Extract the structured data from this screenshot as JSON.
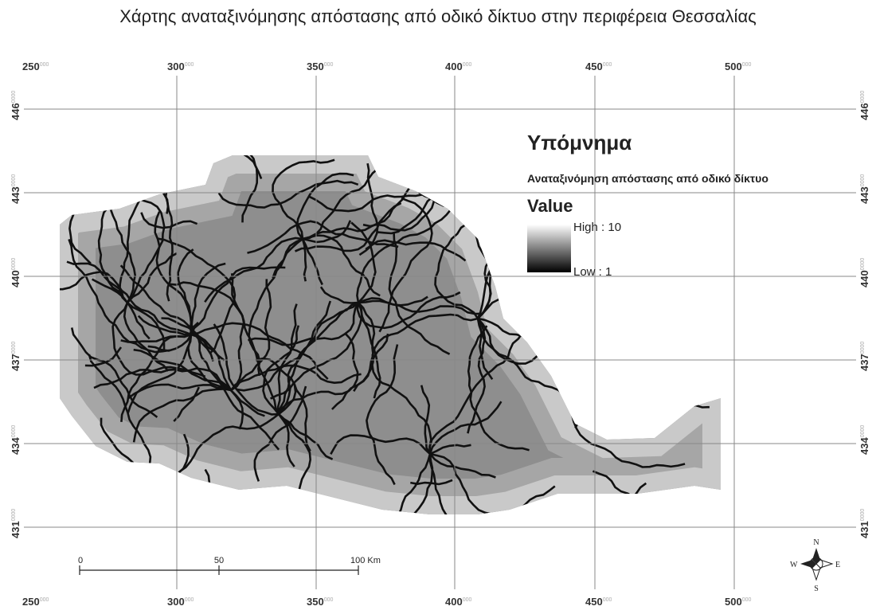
{
  "title": "Χάρτης αναταξινόμησης απόστασης από οδικό δίκτυο στην περιφέρεια Θεσσαλίας",
  "legend": {
    "title": "Υπόμνημα",
    "layer": "Αναταξινόμηση απόστασης από οδικό δίκτυο",
    "field": "Value",
    "high": "High : 10",
    "low": "Low : 1"
  },
  "grid": {
    "x_labels": [
      {
        "main": "250",
        "sup": "000"
      },
      {
        "main": "300",
        "sup": "000"
      },
      {
        "main": "350",
        "sup": "000"
      },
      {
        "main": "400",
        "sup": "000"
      },
      {
        "main": "450",
        "sup": "000"
      },
      {
        "main": "500",
        "sup": "000"
      }
    ],
    "y_labels": [
      {
        "main": "446",
        "sup": "0000"
      },
      {
        "main": "443",
        "sup": "0000"
      },
      {
        "main": "440",
        "sup": "0000"
      },
      {
        "main": "437",
        "sup": "0000"
      },
      {
        "main": "434",
        "sup": "0000"
      },
      {
        "main": "431",
        "sup": "0000"
      }
    ]
  },
  "scale_bar": {
    "labels": [
      "0",
      "50",
      "100 Km"
    ]
  },
  "north_arrow": {
    "n": "N",
    "s": "S",
    "e": "E",
    "w": "W"
  }
}
